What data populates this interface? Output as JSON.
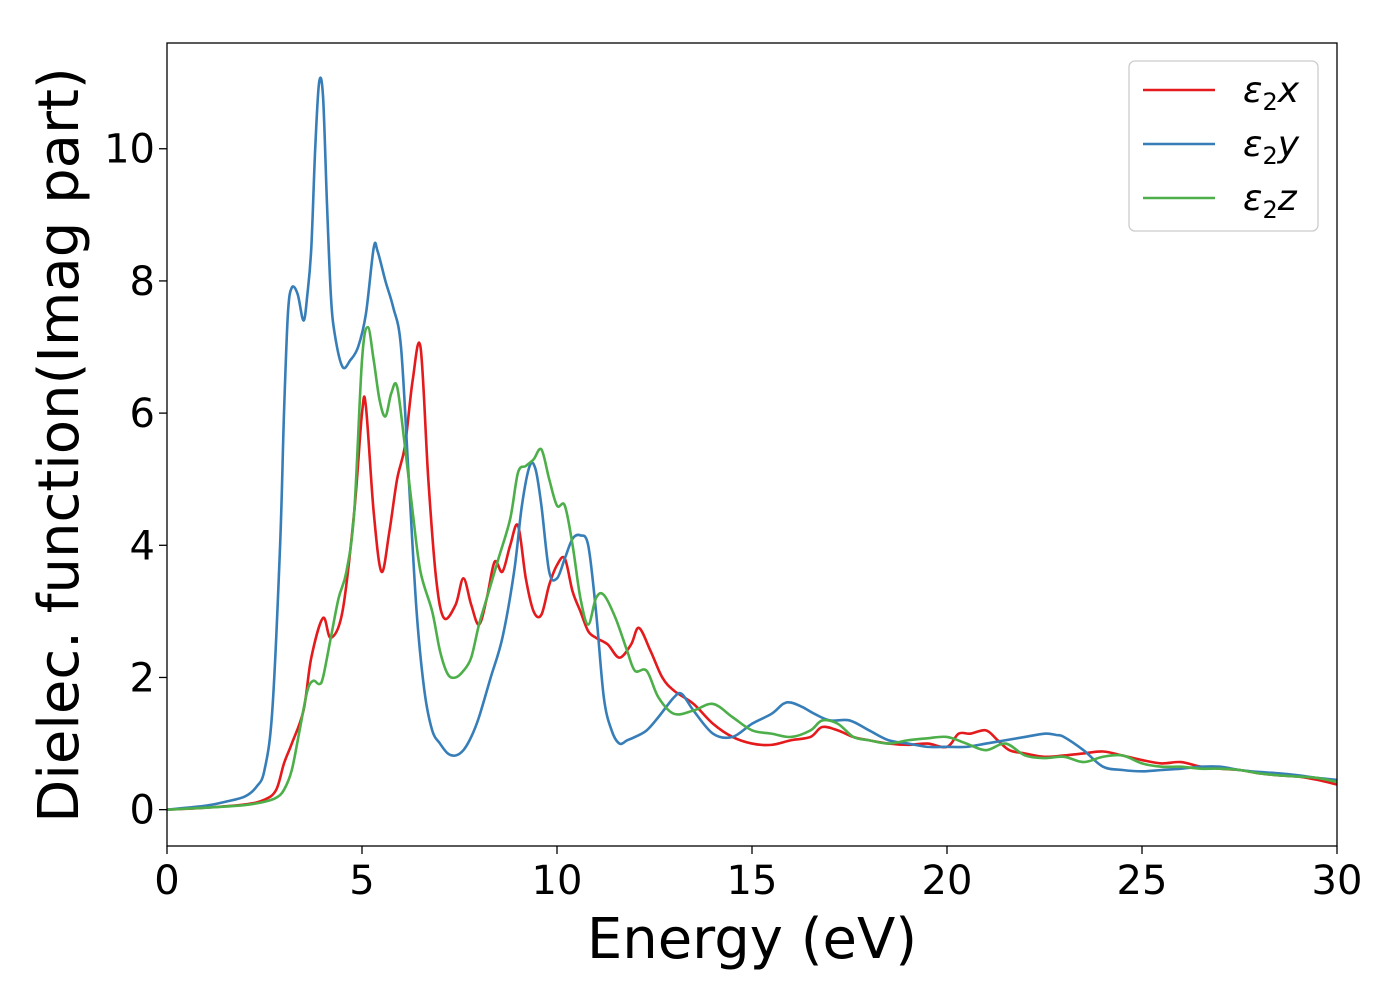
{
  "chart_data": {
    "type": "line",
    "xlabel": "Energy (eV)",
    "ylabel": "Dielec. function(Imag part)",
    "xlim": [
      0,
      30
    ],
    "ylim": [
      -0.55,
      11.6
    ],
    "xticks": [
      0,
      5,
      10,
      15,
      20,
      25,
      30
    ],
    "yticks": [
      0,
      2,
      4,
      6,
      8,
      10
    ],
    "grid": false,
    "legend_position": "top-right",
    "series": [
      {
        "name": "ε₂x",
        "legend": {
          "sym": "ε",
          "sub": "2",
          "axis": "x"
        },
        "color": "#e41a1c",
        "x": [
          0,
          1,
          2,
          2.5,
          2.8,
          3.0,
          3.2,
          3.5,
          3.7,
          4.0,
          4.2,
          4.5,
          4.8,
          5.0,
          5.1,
          5.3,
          5.5,
          5.7,
          5.9,
          6.1,
          6.3,
          6.5,
          6.7,
          6.9,
          7.1,
          7.4,
          7.6,
          7.8,
          8.0,
          8.2,
          8.4,
          8.6,
          8.8,
          9.0,
          9.2,
          9.4,
          9.6,
          9.8,
          10.0,
          10.2,
          10.4,
          10.6,
          10.8,
          11.0,
          11.3,
          11.6,
          11.9,
          12.1,
          12.4,
          12.7,
          13.0,
          13.5,
          14.0,
          14.5,
          15.0,
          15.5,
          16.0,
          16.5,
          16.8,
          17.2,
          17.6,
          18.0,
          18.5,
          19.0,
          19.5,
          20.0,
          20.3,
          20.6,
          21.0,
          21.3,
          21.6,
          22.0,
          22.5,
          23.0,
          23.5,
          24.0,
          24.5,
          25.0,
          25.5,
          26.0,
          26.5,
          27.0,
          27.5,
          28.0,
          28.5,
          29.0,
          29.5,
          30.0
        ],
        "y": [
          0,
          0.03,
          0.08,
          0.15,
          0.3,
          0.7,
          1.0,
          1.5,
          2.3,
          2.9,
          2.6,
          3.0,
          4.5,
          6.0,
          6.1,
          4.5,
          3.6,
          4.2,
          5.0,
          5.5,
          6.5,
          7.0,
          5.0,
          3.5,
          2.9,
          3.1,
          3.5,
          3.1,
          2.8,
          3.2,
          3.75,
          3.6,
          4.0,
          4.3,
          3.5,
          3.0,
          2.95,
          3.4,
          3.7,
          3.8,
          3.3,
          3.0,
          2.7,
          2.6,
          2.5,
          2.3,
          2.5,
          2.75,
          2.4,
          2.0,
          1.8,
          1.6,
          1.3,
          1.1,
          1.0,
          0.98,
          1.05,
          1.1,
          1.25,
          1.2,
          1.1,
          1.05,
          1.0,
          0.98,
          1.0,
          0.95,
          1.15,
          1.15,
          1.2,
          1.05,
          0.9,
          0.85,
          0.8,
          0.82,
          0.85,
          0.88,
          0.82,
          0.75,
          0.7,
          0.72,
          0.65,
          0.62,
          0.6,
          0.55,
          0.52,
          0.5,
          0.45,
          0.38
        ]
      },
      {
        "name": "ε₂y",
        "legend": {
          "sym": "ε",
          "sub": "2",
          "axis": "y"
        },
        "color": "#377eb8",
        "x": [
          0,
          1,
          1.5,
          2.0,
          2.3,
          2.5,
          2.7,
          2.9,
          3.0,
          3.1,
          3.2,
          3.35,
          3.5,
          3.6,
          3.7,
          3.8,
          3.9,
          4.0,
          4.1,
          4.2,
          4.3,
          4.5,
          4.7,
          4.9,
          5.1,
          5.3,
          5.4,
          5.6,
          5.8,
          6.0,
          6.2,
          6.4,
          6.6,
          6.8,
          7.0,
          7.2,
          7.4,
          7.6,
          7.8,
          8.0,
          8.3,
          8.6,
          8.9,
          9.1,
          9.3,
          9.45,
          9.6,
          9.8,
          10.0,
          10.2,
          10.4,
          10.6,
          10.8,
          11.0,
          11.2,
          11.4,
          11.6,
          11.8,
          12.0,
          12.3,
          12.6,
          13.0,
          13.2,
          13.5,
          14.0,
          14.5,
          15.0,
          15.5,
          15.8,
          16.0,
          16.3,
          16.6,
          17.0,
          17.5,
          18.0,
          18.5,
          19.0,
          19.5,
          20.0,
          20.5,
          21.0,
          21.5,
          22.0,
          22.5,
          22.8,
          23.0,
          23.5,
          24.0,
          24.5,
          25.0,
          25.5,
          26.0,
          26.5,
          27.0,
          27.5,
          28.0,
          28.5,
          29.0,
          29.5,
          30.0
        ],
        "y": [
          0,
          0.06,
          0.12,
          0.2,
          0.35,
          0.6,
          1.5,
          4.0,
          6.0,
          7.5,
          7.9,
          7.8,
          7.4,
          7.8,
          8.5,
          10.0,
          11.0,
          10.8,
          9.2,
          7.8,
          7.2,
          6.7,
          6.8,
          7.0,
          7.5,
          8.5,
          8.45,
          8.0,
          7.6,
          7.0,
          5.0,
          3.0,
          1.8,
          1.2,
          1.0,
          0.85,
          0.82,
          0.9,
          1.1,
          1.4,
          2.0,
          2.6,
          3.6,
          4.6,
          5.2,
          5.15,
          4.6,
          3.6,
          3.5,
          3.8,
          4.1,
          4.15,
          4.0,
          3.0,
          1.7,
          1.2,
          1.0,
          1.05,
          1.1,
          1.2,
          1.4,
          1.7,
          1.75,
          1.5,
          1.15,
          1.1,
          1.3,
          1.45,
          1.6,
          1.62,
          1.55,
          1.45,
          1.35,
          1.35,
          1.2,
          1.05,
          1.0,
          0.95,
          0.95,
          0.95,
          1.0,
          1.05,
          1.1,
          1.15,
          1.13,
          1.1,
          0.9,
          0.65,
          0.6,
          0.58,
          0.6,
          0.62,
          0.65,
          0.65,
          0.6,
          0.57,
          0.55,
          0.52,
          0.48,
          0.45
        ]
      },
      {
        "name": "ε₂z",
        "legend": {
          "sym": "ε",
          "sub": "2",
          "axis": "z"
        },
        "color": "#4daf4a",
        "x": [
          0,
          1,
          2,
          2.5,
          2.8,
          3.0,
          3.2,
          3.4,
          3.6,
          3.75,
          3.9,
          4.0,
          4.2,
          4.4,
          4.6,
          4.8,
          5.0,
          5.15,
          5.3,
          5.45,
          5.6,
          5.75,
          5.9,
          6.1,
          6.3,
          6.5,
          6.8,
          7.0,
          7.2,
          7.4,
          7.6,
          7.8,
          8.0,
          8.2,
          8.5,
          8.8,
          9.0,
          9.2,
          9.4,
          9.6,
          9.8,
          10.0,
          10.2,
          10.4,
          10.6,
          10.8,
          11.0,
          11.2,
          11.5,
          11.8,
          12.0,
          12.3,
          12.6,
          13.0,
          13.5,
          14.0,
          14.5,
          15.0,
          15.5,
          16.0,
          16.5,
          16.8,
          17.2,
          17.6,
          18.0,
          18.5,
          19.0,
          19.5,
          20.0,
          20.5,
          21.0,
          21.5,
          22.0,
          22.5,
          23.0,
          23.5,
          24.0,
          24.5,
          25.0,
          25.5,
          26.0,
          26.5,
          27.0,
          27.5,
          28.0,
          28.5,
          29.0,
          29.5,
          30.0
        ],
        "y": [
          0,
          0.03,
          0.07,
          0.12,
          0.18,
          0.3,
          0.6,
          1.2,
          1.8,
          1.95,
          1.9,
          2.0,
          2.6,
          3.2,
          3.6,
          4.5,
          6.8,
          7.3,
          6.8,
          6.2,
          5.95,
          6.3,
          6.4,
          5.5,
          4.5,
          3.6,
          3.0,
          2.4,
          2.05,
          2.0,
          2.1,
          2.3,
          2.8,
          3.2,
          3.8,
          4.4,
          5.1,
          5.2,
          5.3,
          5.45,
          5.0,
          4.6,
          4.6,
          4.0,
          3.2,
          2.8,
          3.2,
          3.25,
          2.9,
          2.4,
          2.1,
          2.1,
          1.7,
          1.45,
          1.5,
          1.6,
          1.4,
          1.2,
          1.15,
          1.1,
          1.2,
          1.35,
          1.3,
          1.1,
          1.05,
          1.0,
          1.05,
          1.08,
          1.1,
          1.0,
          0.9,
          1.0,
          0.82,
          0.78,
          0.8,
          0.72,
          0.8,
          0.82,
          0.7,
          0.65,
          0.65,
          0.62,
          0.62,
          0.6,
          0.55,
          0.52,
          0.5,
          0.48,
          0.42
        ]
      }
    ]
  }
}
